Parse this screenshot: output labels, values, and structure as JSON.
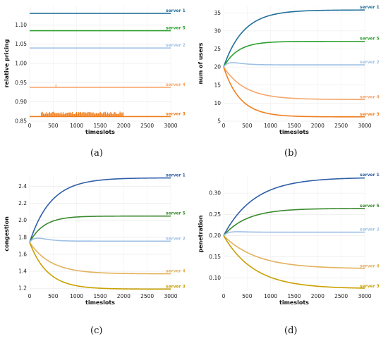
{
  "chart_data": [
    {
      "type": "line",
      "caption": "(a)",
      "xlabel": "timeslots",
      "ylabel": "relative pricing",
      "xlim": [
        0,
        3000
      ],
      "ylim": [
        0.85,
        1.15
      ],
      "xticks": [
        "0",
        "500",
        "1000",
        "1500",
        "2000",
        "2500",
        "3000"
      ],
      "yticks": [
        "0.85",
        "0.90",
        "0.95",
        "1.00",
        "1.05",
        "1.10"
      ],
      "grid": true,
      "series": [
        {
          "name": "server 1",
          "color": "#1f6f9b",
          "start": 1.13,
          "end": 1.13,
          "tau": 400
        },
        {
          "name": "server 5",
          "color": "#2ca02c",
          "start": 1.085,
          "end": 1.085,
          "tau": 400
        },
        {
          "name": "server 2",
          "color": "#9ec0e6",
          "start": 1.04,
          "end": 1.04,
          "tau": 400
        },
        {
          "name": "server 4",
          "color": "#f5a66c",
          "start": 0.938,
          "end": 0.938,
          "tau": 400,
          "spikes": [
            [
              560,
              0.946
            ]
          ]
        },
        {
          "name": "server 3",
          "color": "#f07f1f",
          "start": 0.862,
          "end": 0.862,
          "tau": 400,
          "spike_band": [
            250,
            2000,
            0.868,
            0.875
          ]
        }
      ]
    },
    {
      "type": "line",
      "caption": "(b)",
      "xlabel": "timeslots",
      "ylabel": "num of users",
      "xlim": [
        0,
        3000
      ],
      "ylim": [
        5,
        37
      ],
      "xticks": [
        "0",
        "500",
        "1000",
        "1500",
        "2000",
        "2500",
        "3000"
      ],
      "yticks": [
        "5",
        "10",
        "15",
        "20",
        "25",
        "30",
        "35"
      ],
      "grid": true,
      "series": [
        {
          "name": "server 1",
          "color": "#1f6f9b",
          "start": 20,
          "end": 35.8,
          "tau": 420
        },
        {
          "name": "server 5",
          "color": "#2ca02c",
          "start": 20,
          "end": 27.1,
          "tau": 300
        },
        {
          "name": "server 2",
          "color": "#9ec0e6",
          "start": 20,
          "end": 20.6,
          "tau": 150,
          "bump": 0.8
        },
        {
          "name": "server 4",
          "color": "#f5a66c",
          "start": 20,
          "end": 11,
          "tau": 450
        },
        {
          "name": "server 3",
          "color": "#f07f1f",
          "start": 20,
          "end": 6.2,
          "tau": 350
        }
      ]
    },
    {
      "type": "line",
      "caption": "(c)",
      "xlabel": "timeslots",
      "ylabel": "congestion",
      "xlim": [
        0,
        3000
      ],
      "ylim": [
        1.16,
        2.52
      ],
      "xticks": [
        "0",
        "500",
        "1000",
        "1500",
        "2000",
        "2500",
        "3000"
      ],
      "yticks": [
        "1.2",
        "1.4",
        "1.6",
        "1.8",
        "2.0",
        "2.2",
        "2.4"
      ],
      "grid": true,
      "series": [
        {
          "name": "server 1",
          "color": "#2e5ea8",
          "start": 1.74,
          "end": 2.5,
          "tau": 450
        },
        {
          "name": "server 5",
          "color": "#3a8a2e",
          "start": 1.74,
          "end": 2.05,
          "tau": 300
        },
        {
          "name": "server 2",
          "color": "#9ec0e6",
          "start": 1.74,
          "end": 1.755,
          "tau": 150,
          "bump": 0.04
        },
        {
          "name": "server 4",
          "color": "#e3b15e",
          "start": 1.74,
          "end": 1.37,
          "tau": 450
        },
        {
          "name": "server 3",
          "color": "#c8a000",
          "start": 1.74,
          "end": 1.19,
          "tau": 380
        }
      ]
    },
    {
      "type": "line",
      "caption": "(d)",
      "xlabel": "timeslots",
      "ylabel": "penetration",
      "xlim": [
        0,
        3000
      ],
      "ylim": [
        0.068,
        0.34
      ],
      "xticks": [
        "0",
        "500",
        "1000",
        "1500",
        "2000",
        "2500",
        "3000"
      ],
      "yticks": [
        "0.10",
        "0.15",
        "0.20",
        "0.25",
        "0.30"
      ],
      "grid": true,
      "series": [
        {
          "name": "server 1",
          "color": "#2e5ea8",
          "start": 0.2,
          "end": 0.337,
          "tau": 650
        },
        {
          "name": "server 5",
          "color": "#3a8a2e",
          "start": 0.2,
          "end": 0.264,
          "tau": 500
        },
        {
          "name": "server 2",
          "color": "#9ec0e6",
          "start": 0.2,
          "end": 0.208,
          "tau": 150,
          "bump": 0.003
        },
        {
          "name": "server 4",
          "color": "#e3b15e",
          "start": 0.2,
          "end": 0.122,
          "tau": 700
        },
        {
          "name": "server 3",
          "color": "#c8a000",
          "start": 0.2,
          "end": 0.075,
          "tau": 650
        }
      ]
    }
  ]
}
